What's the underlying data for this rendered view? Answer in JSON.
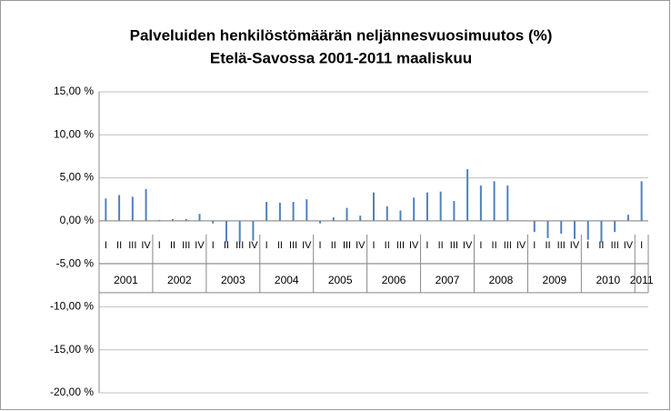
{
  "chart_data": {
    "type": "bar",
    "title": [
      "Palveluiden henkilöstömäärän neljännesvuosimuutos (%)",
      "Etelä-Savossa 2001-2011 maaliskuu"
    ],
    "categories": [
      "I",
      "II",
      "III",
      "IV",
      "I",
      "II",
      "III",
      "IV",
      "I",
      "II",
      "III",
      "IV",
      "I",
      "II",
      "III",
      "IV",
      "I",
      "II",
      "III",
      "IV",
      "I",
      "II",
      "III",
      "IV",
      "I",
      "II",
      "III",
      "IV",
      "I",
      "II",
      "III",
      "IV",
      "I",
      "II",
      "III",
      "IV",
      "I",
      "II",
      "III",
      "IV",
      "I"
    ],
    "years": [
      "2001",
      "2002",
      "2003",
      "2004",
      "2005",
      "2006",
      "2007",
      "2008",
      "2009",
      "2010",
      "2011"
    ],
    "values": [
      2.6,
      3.0,
      2.8,
      3.7,
      0.1,
      0.2,
      0.2,
      0.8,
      -0.3,
      -2.5,
      -2.5,
      -2.3,
      2.2,
      2.1,
      2.2,
      2.5,
      -0.3,
      0.4,
      1.5,
      0.6,
      3.3,
      1.7,
      1.2,
      2.7,
      3.3,
      3.4,
      2.3,
      6.0,
      4.1,
      4.6,
      4.1,
      0.0,
      -1.3,
      -2.0,
      -1.5,
      -2.1,
      -2.2,
      -2.5,
      -1.3,
      0.7,
      4.6
    ],
    "color": "#4f81bd",
    "ylim": [
      -20,
      15
    ],
    "yticks": [
      {
        "value": 15,
        "label": "15,00 %"
      },
      {
        "value": 10,
        "label": "10,00 %"
      },
      {
        "value": 5,
        "label": "5,00 %"
      },
      {
        "value": 0,
        "label": "0,00 %"
      },
      {
        "value": -5,
        "label": "-5,00 %"
      },
      {
        "value": -10,
        "label": "-10,00 %"
      },
      {
        "value": -15,
        "label": "-15,00 %"
      },
      {
        "value": -20,
        "label": "-20,00 %"
      }
    ],
    "grid": true
  }
}
